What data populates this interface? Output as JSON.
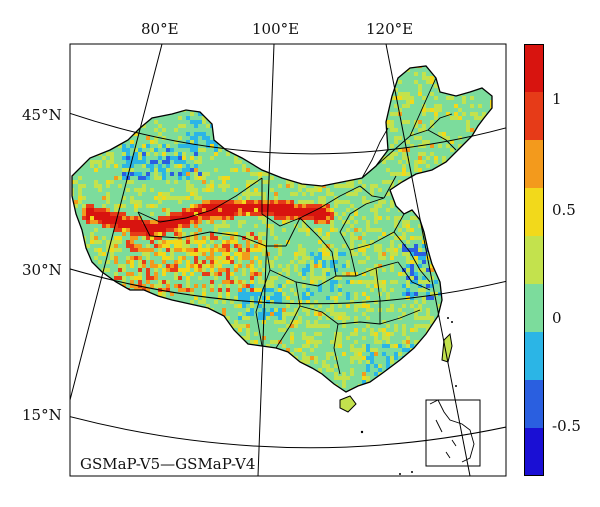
{
  "map": {
    "caption": "GSMaP-V5—GSMaP-V4",
    "lon_labels": [
      "80°E",
      "100°E",
      "120°E"
    ],
    "lat_labels": [
      "45°N",
      "30°N",
      "15°N"
    ],
    "region": "China"
  },
  "colorbar": {
    "ticks": [
      "1",
      "0.5",
      "0",
      "-0.5"
    ],
    "colors": [
      "#1a0fd4",
      "#2a5fe0",
      "#2bb5e6",
      "#7cdc9c",
      "#c3e24d",
      "#f2d91b",
      "#f39a1c",
      "#e63b18",
      "#d8140f"
    ]
  }
}
